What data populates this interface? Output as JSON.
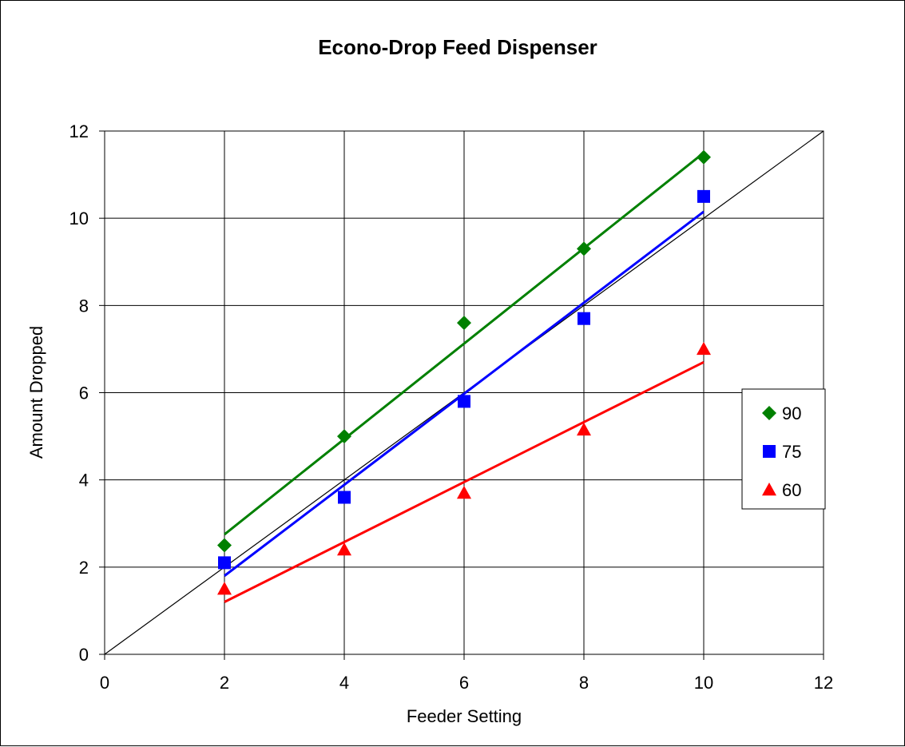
{
  "chart_data": {
    "type": "scatter",
    "title": "Econo-Drop Feed Dispenser",
    "xlabel": "Feeder Setting",
    "ylabel": "Amount Dropped",
    "xlim": [
      0,
      12
    ],
    "ylim": [
      0,
      12
    ],
    "x_ticks": [
      0,
      2,
      4,
      6,
      8,
      10,
      12
    ],
    "y_ticks": [
      0,
      2,
      4,
      6,
      8,
      10,
      12
    ],
    "grid": true,
    "legend_position": "right",
    "series": [
      {
        "name": "90",
        "color": "#008000",
        "marker": "diamond",
        "x": [
          2,
          4,
          6,
          8,
          10
        ],
        "y": [
          2.5,
          5.0,
          7.6,
          9.3,
          11.4
        ],
        "trendline": {
          "x": [
            2,
            10
          ],
          "y": [
            2.75,
            11.5
          ]
        }
      },
      {
        "name": "75",
        "color": "#0000ff",
        "marker": "square",
        "x": [
          2,
          4,
          6,
          8,
          10
        ],
        "y": [
          2.1,
          3.6,
          5.8,
          7.7,
          10.5
        ],
        "trendline": {
          "x": [
            2,
            10
          ],
          "y": [
            1.8,
            10.15
          ]
        }
      },
      {
        "name": "60",
        "color": "#ff0000",
        "marker": "triangle",
        "x": [
          2,
          4,
          6,
          8,
          10
        ],
        "y": [
          1.5,
          2.4,
          3.7,
          5.15,
          7.0
        ],
        "trendline": {
          "x": [
            2,
            10
          ],
          "y": [
            1.2,
            6.7
          ]
        }
      }
    ],
    "reference_line": {
      "x": [
        0,
        12
      ],
      "y": [
        0,
        12
      ],
      "color": "#000000"
    }
  }
}
